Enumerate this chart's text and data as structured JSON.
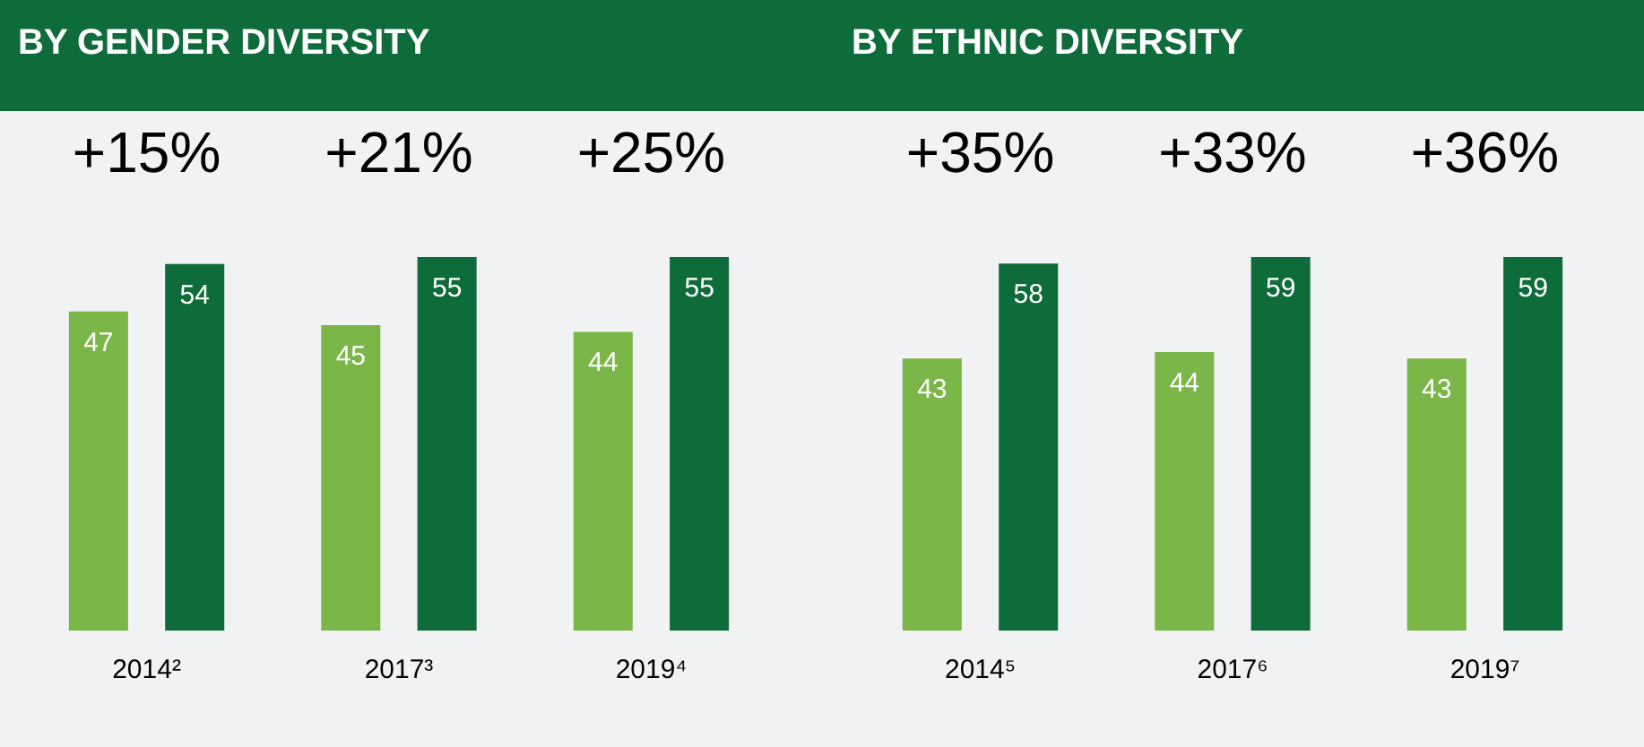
{
  "chart_data": [
    {
      "type": "bar",
      "title": "BY GENDER DIVERSITY",
      "categories": [
        "2014²",
        "2017³",
        "2019⁴"
      ],
      "series": [
        {
          "color": "#7ab648",
          "values": [
            47,
            45,
            44
          ]
        },
        {
          "color": "#0e6b3a",
          "values": [
            54,
            55,
            55
          ]
        }
      ],
      "data_labels": true,
      "tick_labels": "x",
      "annotations": [
        "+15%",
        "+21%",
        "+25%"
      ]
    },
    {
      "type": "bar",
      "title": "BY ETHNIC DIVERSITY",
      "categories": [
        "2014⁵",
        "2017⁶",
        "2019⁷"
      ],
      "series": [
        {
          "color": "#7ab648",
          "values": [
            43,
            44,
            43
          ]
        },
        {
          "color": "#0e6b3a",
          "values": [
            58,
            59,
            59
          ]
        }
      ],
      "data_labels": true,
      "tick_labels": "x",
      "annotations": [
        "+35%",
        "+33%",
        "+36%"
      ]
    }
  ]
}
